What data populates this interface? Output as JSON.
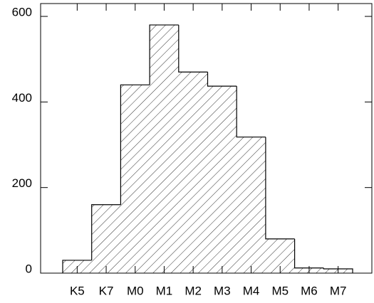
{
  "chart_data": {
    "type": "bar",
    "categories": [
      "K5",
      "K7",
      "M0",
      "M1",
      "M2",
      "M3",
      "M4",
      "M5",
      "M6",
      "M7"
    ],
    "values": [
      30,
      160,
      440,
      580,
      470,
      437,
      318,
      80,
      12,
      10
    ],
    "color": "#000000",
    "ylim": [
      0,
      630
    ],
    "yticks": [
      0,
      200,
      400,
      600
    ]
  }
}
